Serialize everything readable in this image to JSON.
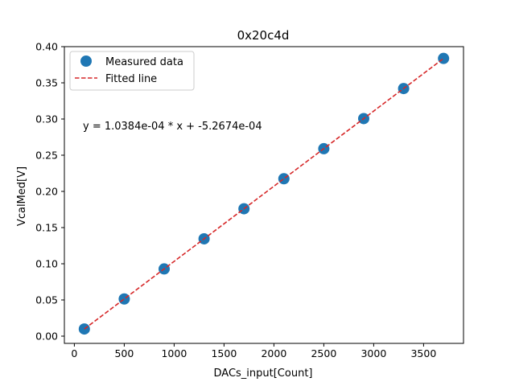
{
  "chart_data": {
    "type": "scatter",
    "title": "0x20c4d",
    "xlabel": "DACs_input[Count]",
    "ylabel": "VcalMed[V]",
    "xlim": [
      -100,
      3900
    ],
    "ylim": [
      -0.01,
      0.4
    ],
    "x_ticks": [
      0,
      500,
      1000,
      1500,
      2000,
      2500,
      3000,
      3500
    ],
    "y_ticks": [
      0.0,
      0.05,
      0.1,
      0.15,
      0.2,
      0.25,
      0.3,
      0.35,
      0.4
    ],
    "x_tick_labels": [
      "0",
      "500",
      "1000",
      "1500",
      "2000",
      "2500",
      "3000",
      "3500"
    ],
    "y_tick_labels": [
      "0.00",
      "0.05",
      "0.10",
      "0.15",
      "0.20",
      "0.25",
      "0.30",
      "0.35",
      "0.40"
    ],
    "grid": false,
    "legend_position": "top-left",
    "series": [
      {
        "name": "Measured data",
        "kind": "scatter",
        "color": "#1f77b4",
        "x": [
          100,
          500,
          900,
          1300,
          1700,
          2100,
          2500,
          2900,
          3300,
          3700
        ],
        "y": [
          0.0099,
          0.0514,
          0.0929,
          0.1345,
          0.176,
          0.2175,
          0.259,
          0.3006,
          0.3421,
          0.3837
        ]
      },
      {
        "name": "Fitted line",
        "kind": "line",
        "style": "dashed",
        "color": "#d62728",
        "slope": 0.00010384,
        "intercept": -0.00052674,
        "x_range": [
          100,
          3700
        ]
      }
    ],
    "annotation": "y = 1.0384e-04 * x + -5.2674e-04"
  }
}
